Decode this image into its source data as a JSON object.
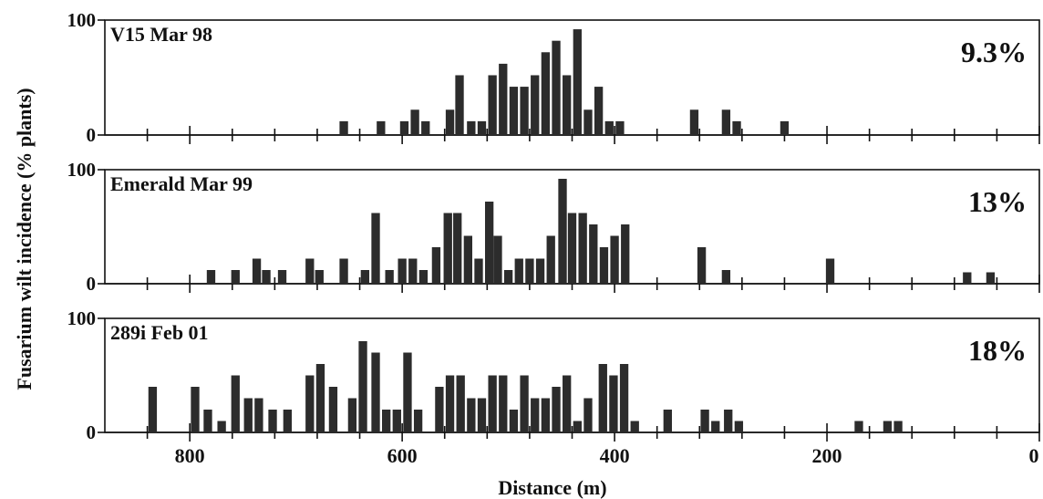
{
  "chart_data": {
    "type": "bar",
    "ylabel": "Fusarium wilt incidence (% plants)",
    "xlabel": "Distance (m)",
    "xlim": [
      880,
      0
    ],
    "ylim": [
      0,
      100
    ],
    "x_ticks": [
      800,
      600,
      400,
      200,
      0
    ],
    "y_ticks": [
      0,
      100
    ],
    "minor_tick_step": 40,
    "bar_width_m": 8,
    "panels": [
      {
        "title": "V15 Mar 98",
        "incidence_label": "9.3%",
        "x": [
          655,
          620,
          598,
          588,
          578,
          555,
          546,
          535,
          525,
          515,
          505,
          495,
          485,
          475,
          465,
          455,
          445,
          435,
          425,
          415,
          405,
          395,
          325,
          295,
          285,
          240
        ],
        "values": [
          12,
          12,
          12,
          22,
          12,
          22,
          52,
          12,
          12,
          52,
          62,
          42,
          42,
          52,
          72,
          82,
          52,
          92,
          22,
          42,
          12,
          12,
          22,
          22,
          12,
          12
        ]
      },
      {
        "title": "Emerald Mar 99",
        "incidence_label": "13%",
        "x": [
          780,
          757,
          737,
          728,
          713,
          687,
          678,
          655,
          635,
          625,
          612,
          600,
          590,
          580,
          568,
          557,
          548,
          538,
          528,
          518,
          510,
          500,
          490,
          480,
          470,
          460,
          449,
          440,
          430,
          420,
          410,
          400,
          390,
          318,
          295,
          197,
          68,
          46
        ],
        "values": [
          12,
          12,
          22,
          12,
          12,
          22,
          12,
          22,
          12,
          62,
          12,
          22,
          22,
          12,
          32,
          62,
          62,
          42,
          22,
          72,
          42,
          12,
          22,
          22,
          22,
          42,
          92,
          62,
          62,
          52,
          32,
          42,
          52,
          32,
          12,
          22,
          10,
          10
        ]
      },
      {
        "title": "289i Feb 01",
        "incidence_label": "18%",
        "x": [
          835,
          795,
          783,
          770,
          757,
          745,
          735,
          722,
          708,
          687,
          677,
          665,
          647,
          637,
          625,
          615,
          605,
          595,
          585,
          565,
          555,
          545,
          535,
          525,
          515,
          505,
          495,
          485,
          475,
          465,
          455,
          445,
          435,
          425,
          411,
          401,
          391,
          381,
          350,
          315,
          305,
          293,
          283,
          170,
          143,
          133
        ],
        "values": [
          40,
          40,
          20,
          10,
          50,
          30,
          30,
          20,
          20,
          50,
          60,
          40,
          30,
          80,
          70,
          20,
          20,
          70,
          20,
          40,
          50,
          50,
          30,
          30,
          50,
          50,
          20,
          50,
          30,
          30,
          40,
          50,
          10,
          30,
          60,
          50,
          60,
          10,
          20,
          20,
          10,
          20,
          10,
          10,
          10,
          10
        ]
      }
    ]
  }
}
